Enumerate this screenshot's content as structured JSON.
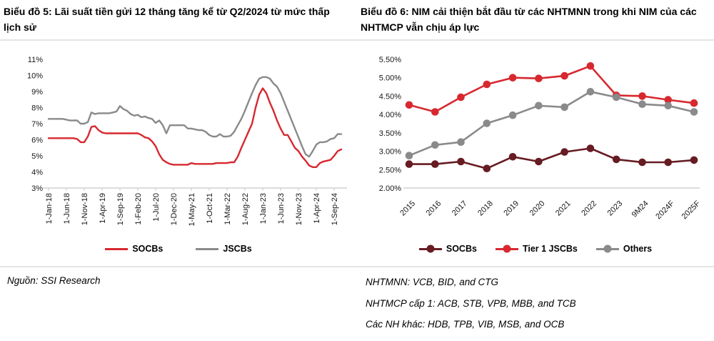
{
  "colors": {
    "red": "#d7282f",
    "dark_red": "#661c22",
    "gray": "#8a8a8c",
    "axis": "#c8c8c8",
    "divider": "#e4e4e4",
    "text": "#000000"
  },
  "left_panel": {
    "title": "Biểu đồ 5: Lãi suất tiền gửi 12 tháng tăng kể từ Q2/2024 từ mức thấp lịch sử",
    "source": "Nguồn: SSI Research"
  },
  "right_panel": {
    "title": "Biểu đồ 6: NIM cải thiện bắt đầu từ các NHTMNN trong khi NIM của các NHTMCP vẫn chịu áp lực",
    "notes": [
      "NHTMNN: VCB, BID, and CTG",
      "NHTMCP cấp 1: ACB, STB, VPB, MBB, and TCB",
      "Các NH khác: HDB, TPB, VIB, MSB, and OCB"
    ]
  },
  "chart_data": [
    {
      "type": "line",
      "title": "Biểu đồ 5: Lãi suất tiền gửi 12 tháng tăng kể từ Q2/2024 từ mức thấp lịch sử",
      "ylabel": "",
      "xlabel": "",
      "ylim": [
        3,
        11
      ],
      "y_ticks": [
        "11%",
        "10%",
        "9%",
        "8%",
        "7%",
        "6%",
        "5%",
        "4%",
        "3%"
      ],
      "x_tick_labels": [
        "1-Jan-18",
        "1-Jun-18",
        "1-Nov-18",
        "1-Apr-19",
        "1-Sep-19",
        "1-Feb-20",
        "1-Jul-20",
        "1-Dec-20",
        "1-May-21",
        "1-Oct-21",
        "1-Mar-22",
        "1-Aug-22",
        "1-Jan-23",
        "1-Jun-23",
        "1-Nov-23",
        "1-Apr-24",
        "1-Sep-24"
      ],
      "x_tick_every": 5,
      "x_frequency": "monthly, Jan-2018 to Nov-2024",
      "legend_position": "bottom",
      "grid": false,
      "series": [
        {
          "name": "SOCBs",
          "color_key": "red",
          "values": [
            6.1,
            6.1,
            6.1,
            6.1,
            6.1,
            6.1,
            6.1,
            6.1,
            6.05,
            5.85,
            5.85,
            6.2,
            6.8,
            6.85,
            6.6,
            6.45,
            6.4,
            6.4,
            6.4,
            6.4,
            6.4,
            6.4,
            6.4,
            6.4,
            6.4,
            6.4,
            6.3,
            6.15,
            6.1,
            5.9,
            5.6,
            5.1,
            4.75,
            4.6,
            4.5,
            4.45,
            4.45,
            4.45,
            4.45,
            4.45,
            4.55,
            4.5,
            4.5,
            4.5,
            4.5,
            4.5,
            4.5,
            4.55,
            4.55,
            4.55,
            4.55,
            4.6,
            4.6,
            4.95,
            5.5,
            6.0,
            6.5,
            7.0,
            8.0,
            8.8,
            9.2,
            8.9,
            8.3,
            7.8,
            7.2,
            6.7,
            6.3,
            6.3,
            5.9,
            5.5,
            5.3,
            4.95,
            4.7,
            4.4,
            4.3,
            4.3,
            4.55,
            4.65,
            4.7,
            4.75,
            5.0,
            5.3,
            5.4
          ]
        },
        {
          "name": "JSCBs",
          "color_key": "gray",
          "values": [
            7.3,
            7.3,
            7.3,
            7.3,
            7.3,
            7.25,
            7.2,
            7.2,
            7.2,
            7.0,
            7.0,
            7.1,
            7.7,
            7.6,
            7.65,
            7.65,
            7.65,
            7.65,
            7.7,
            7.75,
            8.1,
            7.9,
            7.8,
            7.6,
            7.5,
            7.55,
            7.4,
            7.45,
            7.35,
            7.3,
            7.05,
            7.2,
            6.9,
            6.4,
            6.9,
            6.9,
            6.9,
            6.9,
            6.9,
            6.7,
            6.7,
            6.65,
            6.6,
            6.6,
            6.5,
            6.3,
            6.2,
            6.2,
            6.35,
            6.2,
            6.2,
            6.25,
            6.5,
            6.9,
            7.3,
            7.8,
            8.35,
            8.9,
            9.4,
            9.8,
            9.9,
            9.9,
            9.8,
            9.5,
            9.3,
            8.9,
            8.35,
            7.8,
            7.25,
            6.7,
            6.15,
            5.6,
            5.1,
            4.95,
            5.3,
            5.7,
            5.85,
            5.85,
            5.9,
            6.05,
            6.1,
            6.35,
            6.35
          ]
        }
      ]
    },
    {
      "type": "line",
      "title": "Biểu đồ 6: NIM cải thiện bắt đầu từ các NHTMNN trong khi NIM của các NHTMCP vẫn chịu áp lực",
      "ylabel": "",
      "xlabel": "",
      "ylim": [
        2.0,
        5.5
      ],
      "y_ticks": [
        "5.50%",
        "5.00%",
        "4.50%",
        "4.00%",
        "3.50%",
        "3.00%",
        "2.50%",
        "2.00%"
      ],
      "categories": [
        "2015",
        "2016",
        "2017",
        "2018",
        "2019",
        "2020",
        "2021",
        "2022",
        "2023",
        "9M24",
        "2024F",
        "2025F"
      ],
      "legend_position": "bottom",
      "grid": false,
      "markers": true,
      "series": [
        {
          "name": "SOCBs",
          "color_key": "dark_red",
          "values": [
            2.65,
            2.65,
            2.72,
            2.53,
            2.85,
            2.72,
            2.98,
            3.08,
            2.78,
            2.7,
            2.7,
            2.76
          ]
        },
        {
          "name": "Tier 1 JSCBs",
          "color_key": "red",
          "values": [
            4.26,
            4.07,
            4.47,
            4.82,
            5.0,
            4.98,
            5.05,
            5.32,
            4.52,
            4.5,
            4.4,
            4.31
          ]
        },
        {
          "name": "Others",
          "color_key": "gray",
          "values": [
            2.88,
            3.17,
            3.25,
            3.76,
            3.98,
            4.24,
            4.2,
            4.62,
            4.47,
            4.28,
            4.24,
            4.07
          ]
        }
      ]
    }
  ]
}
